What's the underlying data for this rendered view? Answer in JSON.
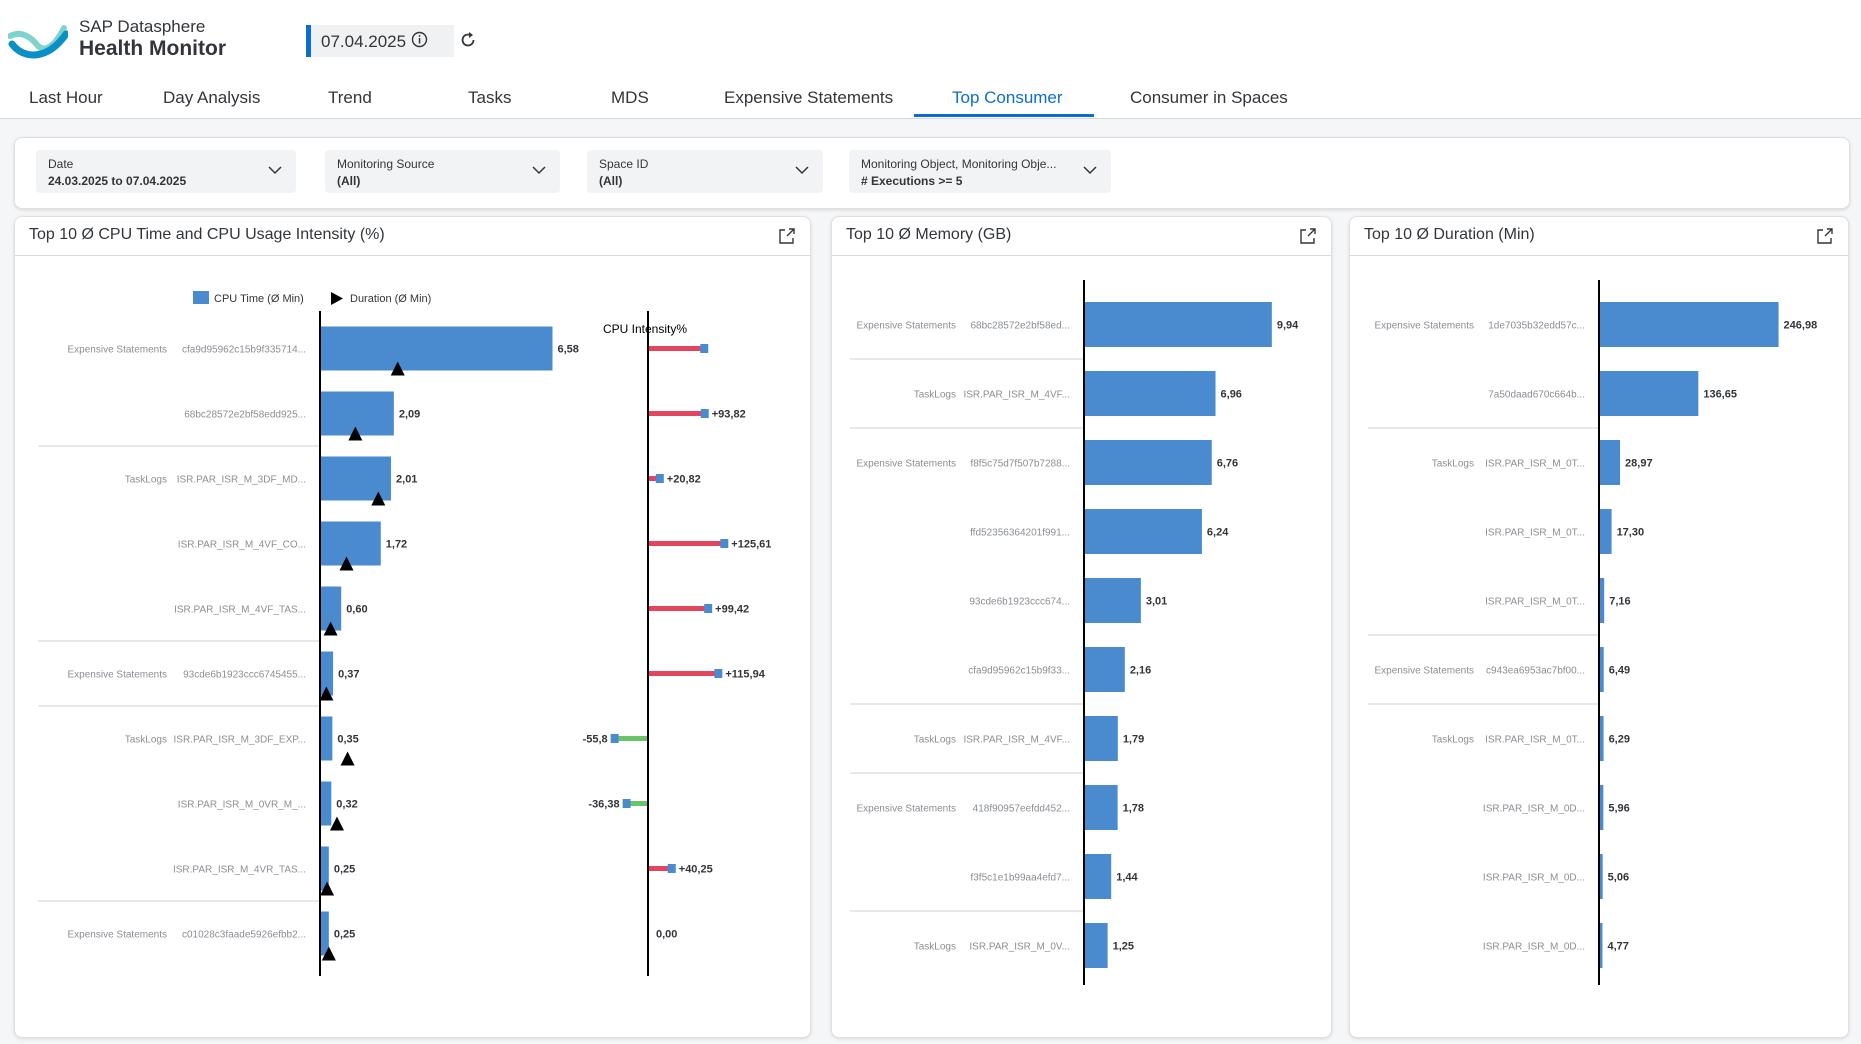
{
  "header": {
    "subtitle": "SAP Datasphere",
    "title": "Health Monitor",
    "date": "07.04.2025"
  },
  "tabs": [
    {
      "label": "Last Hour"
    },
    {
      "label": "Day Analysis"
    },
    {
      "label": "Trend"
    },
    {
      "label": "Tasks"
    },
    {
      "label": "MDS"
    },
    {
      "label": "Expensive Statements"
    },
    {
      "label": "Top Consumer",
      "active": true
    },
    {
      "label": "Consumer in Spaces"
    }
  ],
  "filters": [
    {
      "label": "Date",
      "value": "24.03.2025 to 07.04.2025"
    },
    {
      "label": "Monitoring Source",
      "value": "(All)"
    },
    {
      "label": "Space ID",
      "value": "(All)"
    },
    {
      "label": "Monitoring Object, Monitoring Obje...",
      "value": "# Executions >= 5"
    }
  ],
  "colors": {
    "accent": "#0a6ed1",
    "bar": "#4a8bd0",
    "positive_intensity": "#e3455f",
    "negative_intensity": "#6ac46a"
  },
  "cards": {
    "cpu": {
      "title": "Top 10 Ø CPU Time and CPU Usage Intensity (%)"
    },
    "memory": {
      "title": "Top 10 Ø Memory (GB)"
    },
    "duration": {
      "title": "Top 10 Ø Duration (Min)"
    }
  },
  "chart_data": [
    {
      "type": "bar",
      "legend": [
        {
          "name": "CPU Time (Ø Min)",
          "marker": "square"
        },
        {
          "name": "Duration (Ø Min)",
          "marker": "triangle"
        }
      ],
      "intensity_label": "CPU Intensity%",
      "rows": [
        {
          "group": "Expensive Statements",
          "id": "cfa9d95962c15b9f335714...",
          "cpu": 6.58,
          "cpu_label": "6,58",
          "duration": 2.2,
          "intensity": 93,
          "intensity_label": ""
        },
        {
          "group": "",
          "id": "68bc28572e2bf58edd925...",
          "cpu": 2.09,
          "cpu_label": "2,09",
          "duration": 1.0,
          "intensity": 93.82,
          "intensity_label": "+93,82"
        },
        {
          "group": "TaskLogs",
          "id": "ISR.PAR_ISR_M_3DF_MD...",
          "cpu": 2.01,
          "cpu_label": "2,01",
          "duration": 1.65,
          "intensity": 20.82,
          "intensity_label": "+20,82"
        },
        {
          "group": "",
          "id": "ISR.PAR_ISR_M_4VF_CO...",
          "cpu": 1.72,
          "cpu_label": "1,72",
          "duration": 0.75,
          "intensity": 125.61,
          "intensity_label": "+125,61"
        },
        {
          "group": "",
          "id": "ISR.PAR_ISR_M_4VF_TAS...",
          "cpu": 0.6,
          "cpu_label": "0,60",
          "duration": 0.3,
          "intensity": 99.42,
          "intensity_label": "+99,42"
        },
        {
          "group": "Expensive Statements",
          "id": "93cde6b1923ccc6745455...",
          "cpu": 0.37,
          "cpu_label": "0,37",
          "duration": 0.18,
          "intensity": 115.94,
          "intensity_label": "+115,94"
        },
        {
          "group": "TaskLogs",
          "id": "ISR.PAR_ISR_M_3DF_EXP...",
          "cpu": 0.35,
          "cpu_label": "0,35",
          "duration": 0.78,
          "intensity": -55.8,
          "intensity_label": "-55,8"
        },
        {
          "group": "",
          "id": "ISR.PAR_ISR_M_0VR_M_...",
          "cpu": 0.32,
          "cpu_label": "0,32",
          "duration": 0.48,
          "intensity": -36.38,
          "intensity_label": "-36,38"
        },
        {
          "group": "",
          "id": "ISR.PAR_ISR_M_4VR_TAS...",
          "cpu": 0.25,
          "cpu_label": "0,25",
          "duration": 0.2,
          "intensity": 40.25,
          "intensity_label": "+40,25"
        },
        {
          "group": "Expensive Statements",
          "id": "c01028c3faade5926efbb2...",
          "cpu": 0.25,
          "cpu_label": "0,25",
          "duration": 0.25,
          "intensity": 0,
          "intensity_label": "0,00"
        }
      ],
      "separators_after": [
        1,
        4,
        5,
        8
      ],
      "xlim": [
        0,
        7.5
      ],
      "intensity_xlim": [
        -80,
        130
      ]
    },
    {
      "type": "bar",
      "rows": [
        {
          "group": "Expensive Statements",
          "id": "68bc28572e2bf58ed...",
          "value": 9.94,
          "label": "9,94"
        },
        {
          "group": "TaskLogs",
          "id": "ISR.PAR_ISR_M_4VF...",
          "value": 6.96,
          "label": "6,96"
        },
        {
          "group": "Expensive Statements",
          "id": "f8f5c75d7f507b7288...",
          "value": 6.76,
          "label": "6,76"
        },
        {
          "group": "",
          "id": "ffd52356364201f991...",
          "value": 6.24,
          "label": "6,24"
        },
        {
          "group": "",
          "id": "93cde6b1923ccc674...",
          "value": 3.01,
          "label": "3,01"
        },
        {
          "group": "",
          "id": "cfa9d95962c15b9f33...",
          "value": 2.16,
          "label": "2,16"
        },
        {
          "group": "TaskLogs",
          "id": "ISR.PAR_ISR_M_4VF...",
          "value": 1.79,
          "label": "1,79"
        },
        {
          "group": "Expensive Statements",
          "id": "418f90957eefdd452...",
          "value": 1.78,
          "label": "1,78"
        },
        {
          "group": "",
          "id": "f3f5c1e1b99aa4efd7...",
          "value": 1.44,
          "label": "1,44"
        },
        {
          "group": "TaskLogs",
          "id": "ISR.PAR_ISR_M_0V...",
          "value": 1.25,
          "label": "1,25"
        }
      ],
      "separators_after": [
        0,
        1,
        5,
        6,
        8
      ],
      "xlim": [
        0,
        12.7
      ]
    },
    {
      "type": "bar",
      "rows": [
        {
          "group": "Expensive Statements",
          "id": "1de7035b32edd57c...",
          "value": 246.98,
          "label": "246,98"
        },
        {
          "group": "",
          "id": "7a50daad670c664b...",
          "value": 136.65,
          "label": "136,65"
        },
        {
          "group": "TaskLogs",
          "id": "ISR.PAR_ISR_M_0T...",
          "value": 28.97,
          "label": "28,97"
        },
        {
          "group": "",
          "id": "ISR.PAR_ISR_M_0T...",
          "value": 17.3,
          "label": "17,30"
        },
        {
          "group": "",
          "id": "ISR.PAR_ISR_M_0T...",
          "value": 7.16,
          "label": "7,16"
        },
        {
          "group": "Expensive Statements",
          "id": "c943ea6953ac7bf00...",
          "value": 6.49,
          "label": "6,49"
        },
        {
          "group": "TaskLogs",
          "id": "ISR.PAR_ISR_M_0T...",
          "value": 6.29,
          "label": "6,29"
        },
        {
          "group": "",
          "id": "ISR.PAR_ISR_M_0D...",
          "value": 5.96,
          "label": "5,96"
        },
        {
          "group": "",
          "id": "ISR.PAR_ISR_M_0D...",
          "value": 5.06,
          "label": "5,06"
        },
        {
          "group": "",
          "id": "ISR.PAR_ISR_M_0D...",
          "value": 4.77,
          "label": "4,77"
        }
      ],
      "separators_after": [
        1,
        4,
        5
      ],
      "xlim": [
        0,
        315
      ]
    }
  ]
}
